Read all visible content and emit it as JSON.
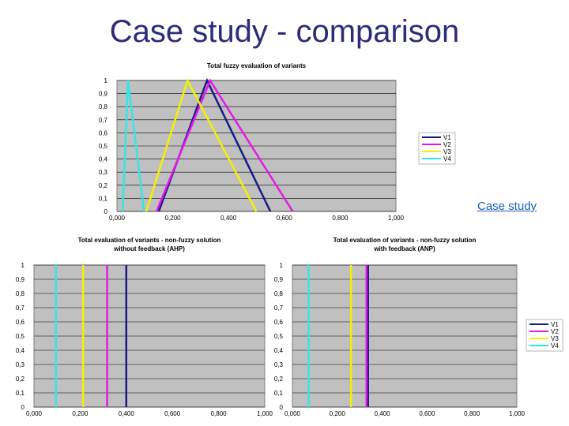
{
  "slide": {
    "title": "Case study - comparison",
    "link_label": "Case study"
  },
  "colors": {
    "V1": "#1a1a8c",
    "V2": "#e619e6",
    "V3": "#f2f200",
    "V4": "#33e6e6",
    "plot_bg": "#c0c0c0",
    "grid": "#000000"
  },
  "chart_data": [
    {
      "type": "line",
      "title": "Total fuzzy evaluation of variants",
      "xlim": [
        0,
        1
      ],
      "ylim": [
        0,
        1
      ],
      "x_ticks": [
        "0,000",
        "0,200",
        "0,400",
        "0,600",
        "0,800",
        "1,000"
      ],
      "y_ticks": [
        "0",
        "0,1",
        "0,2",
        "0,3",
        "0,4",
        "0,5",
        "0,6",
        "0,7",
        "0,8",
        "0,9",
        "1"
      ],
      "grid": true,
      "legend": "right",
      "series": [
        {
          "name": "V1",
          "points": [
            [
              0.15,
              0
            ],
            [
              0.323,
              1
            ],
            [
              0.55,
              0
            ]
          ]
        },
        {
          "name": "V2",
          "points": [
            [
              0.142,
              0
            ],
            [
              0.334,
              1
            ],
            [
              0.63,
              0
            ]
          ]
        },
        {
          "name": "V3",
          "points": [
            [
              0.105,
              0
            ],
            [
              0.253,
              1
            ],
            [
              0.5,
              0
            ]
          ]
        },
        {
          "name": "V4",
          "points": [
            [
              0.02,
              0
            ],
            [
              0.04,
              1
            ],
            [
              0.097,
              0
            ]
          ]
        }
      ]
    },
    {
      "type": "line",
      "title": "Total evaluation of variants - non-fuzzy solution",
      "subtitle": "without feedback (AHP)",
      "xlim": [
        0,
        1
      ],
      "ylim": [
        0,
        1
      ],
      "x_ticks": [
        "0,000",
        "0,200",
        "0,400",
        "0,600",
        "0,800",
        "1,000"
      ],
      "y_ticks": [
        "0",
        "0,1",
        "0,2",
        "0,3",
        "0,4",
        "0,5",
        "0,6",
        "0,7",
        "0,8",
        "0,9",
        "1"
      ],
      "grid": true,
      "legend": "none",
      "series": [
        {
          "name": "V1",
          "x": 0.4
        },
        {
          "name": "V2",
          "x": 0.317
        },
        {
          "name": "V3",
          "x": 0.213
        },
        {
          "name": "V4",
          "x": 0.095
        }
      ]
    },
    {
      "type": "line",
      "title": "Total evaluation of variants - non-fuzzy solution",
      "subtitle": "with feedback (ANP)",
      "xlim": [
        0,
        1
      ],
      "ylim": [
        0,
        1
      ],
      "x_ticks": [
        "0,000",
        "0,200",
        "0,400",
        "0,600",
        "0,800",
        "1,000"
      ],
      "y_ticks": [
        "0",
        "0,1",
        "0,2",
        "0,3",
        "0,4",
        "0,5",
        "0,6",
        "0,7",
        "0,8",
        "0,9",
        "1"
      ],
      "grid": true,
      "legend": "right",
      "series": [
        {
          "name": "V1",
          "x": 0.337
        },
        {
          "name": "V2",
          "x": 0.33
        },
        {
          "name": "V3",
          "x": 0.261
        },
        {
          "name": "V4",
          "x": 0.072
        }
      ]
    }
  ]
}
